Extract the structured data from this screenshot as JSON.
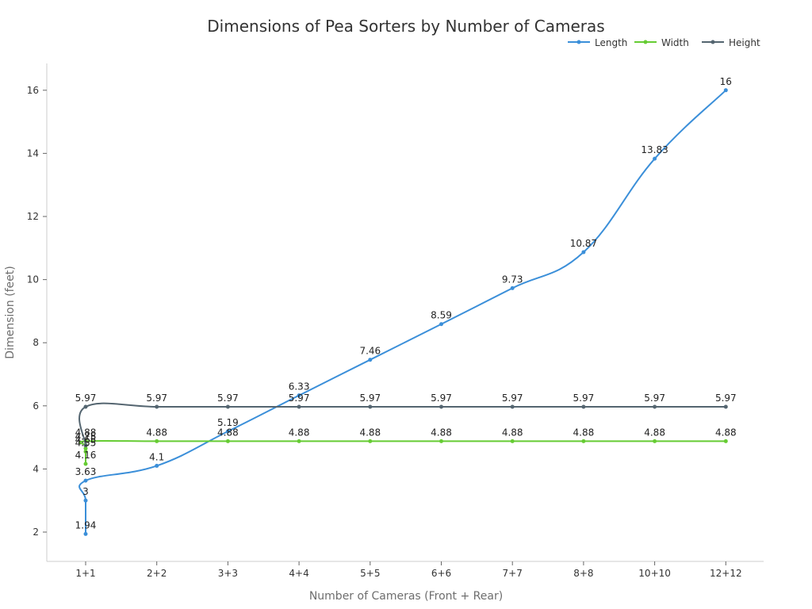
{
  "chart_data": {
    "type": "line",
    "title": "Dimensions of Pea Sorters by Number of Cameras",
    "xlabel": "Number of Cameras (Front + Rear)",
    "ylabel": "Dimension (feet)",
    "categories": [
      "1+1",
      "2+2",
      "3+3",
      "4+4",
      "5+5",
      "6+6",
      "7+7",
      "8+8",
      "10+10",
      "12+12"
    ],
    "y_ticks": [
      2,
      4,
      6,
      8,
      10,
      12,
      14,
      16
    ],
    "ylim": [
      1,
      17
    ],
    "grid": false,
    "legend_position": "top-right",
    "series": [
      {
        "name": "Length",
        "color": "#3b8fd9",
        "points": [
          [
            "1+1",
            1.94
          ],
          [
            "1+1",
            3.0
          ],
          [
            "1+1",
            3.63
          ],
          [
            "2+2",
            4.1
          ],
          [
            "3+3",
            5.19
          ],
          [
            "4+4",
            6.33
          ],
          [
            "5+5",
            7.46
          ],
          [
            "6+6",
            8.59
          ],
          [
            "7+7",
            9.73
          ],
          [
            "8+8",
            10.87
          ],
          [
            "10+10",
            13.83
          ],
          [
            "12+12",
            16
          ]
        ]
      },
      {
        "name": "Width",
        "color": "#66cc33",
        "points": [
          [
            "1+1",
            4.16
          ],
          [
            "1+1",
            4.55
          ],
          [
            "1+1",
            4.65
          ],
          [
            "1+1",
            4.75
          ],
          [
            "1+1",
            4.88
          ],
          [
            "2+2",
            4.88
          ],
          [
            "3+3",
            4.88
          ],
          [
            "4+4",
            4.88
          ],
          [
            "5+5",
            4.88
          ],
          [
            "6+6",
            4.88
          ],
          [
            "7+7",
            4.88
          ],
          [
            "8+8",
            4.88
          ],
          [
            "10+10",
            4.88
          ],
          [
            "12+12",
            4.88
          ]
        ]
      },
      {
        "name": "Height",
        "color": "#546570",
        "points": [
          [
            "1+1",
            4.75
          ],
          [
            "1+1",
            5.97
          ],
          [
            "2+2",
            5.97
          ],
          [
            "3+3",
            5.97
          ],
          [
            "4+4",
            5.97
          ],
          [
            "5+5",
            5.97
          ],
          [
            "6+6",
            5.97
          ],
          [
            "7+7",
            5.97
          ],
          [
            "8+8",
            5.97
          ],
          [
            "10+10",
            5.97
          ],
          [
            "12+12",
            5.97
          ]
        ]
      }
    ]
  }
}
